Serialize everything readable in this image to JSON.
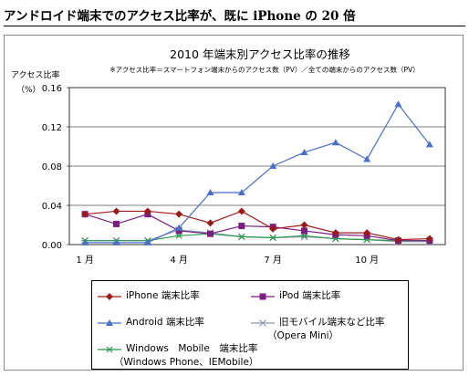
{
  "headline": "アンドロイド端末でのアクセス比率が、既に iPhone の 20 倍",
  "chart_data": {
    "type": "line",
    "title": "2010 年端末別アクセス比率の推移",
    "subtitle": "※アクセス比率＝スマートフォン端末からのアクセス数（PV）／全ての端末からのアクセス数（PV）",
    "ylabel": "アクセス比率",
    "yunit": "（%）",
    "ylim": [
      0,
      0.16
    ],
    "yticks": [
      "0.00",
      "0.04",
      "0.08",
      "0.12",
      "0.16"
    ],
    "x": [
      1,
      2,
      3,
      4,
      5,
      6,
      7,
      8,
      9,
      10,
      11,
      12
    ],
    "xtick_labels": [
      {
        "x": 1,
        "label": "1 月"
      },
      {
        "x": 4,
        "label": "4 月"
      },
      {
        "x": 7,
        "label": "7 月"
      },
      {
        "x": 10,
        "label": "10 月"
      }
    ],
    "grid": true,
    "legend_position": "bottom",
    "series": [
      {
        "name": "iPhone 端末比率",
        "color": "#9b1b1b",
        "marker": "diamond",
        "values": [
          0.031,
          0.034,
          0.034,
          0.031,
          0.022,
          0.034,
          0.016,
          0.02,
          0.012,
          0.012,
          0.005,
          0.006
        ]
      },
      {
        "name": "iPod 端末比率",
        "color": "#7a1f7f",
        "marker": "square",
        "values": [
          0.031,
          0.021,
          0.031,
          0.014,
          0.011,
          0.019,
          0.018,
          0.014,
          0.01,
          0.009,
          0.004,
          0.004
        ]
      },
      {
        "name": "Android 端末比率",
        "color": "#4a6fc7",
        "marker": "triangle",
        "values": [
          0.002,
          0.002,
          0.002,
          0.017,
          0.053,
          0.053,
          0.08,
          0.094,
          0.104,
          0.087,
          0.143,
          0.102
        ]
      },
      {
        "name": "旧モバイル端末など比率",
        "name_line2": "（Opera Mini）",
        "color": "#8f97b5",
        "marker": "x",
        "values": [
          0.004,
          0.004,
          0.004,
          0.015,
          0.012,
          0.008,
          0.007,
          0.008,
          0.006,
          0.005,
          0.003,
          0.003
        ]
      },
      {
        "name": "Windows　Mobile　端末比率",
        "name_line2": "（Windows Phone、IEMobile）",
        "color": "#2e9a4e",
        "marker": "star",
        "values": [
          0.004,
          0.004,
          0.004,
          0.009,
          0.011,
          0.008,
          0.007,
          0.009,
          0.006,
          0.005,
          0.004,
          0.004
        ]
      }
    ]
  }
}
